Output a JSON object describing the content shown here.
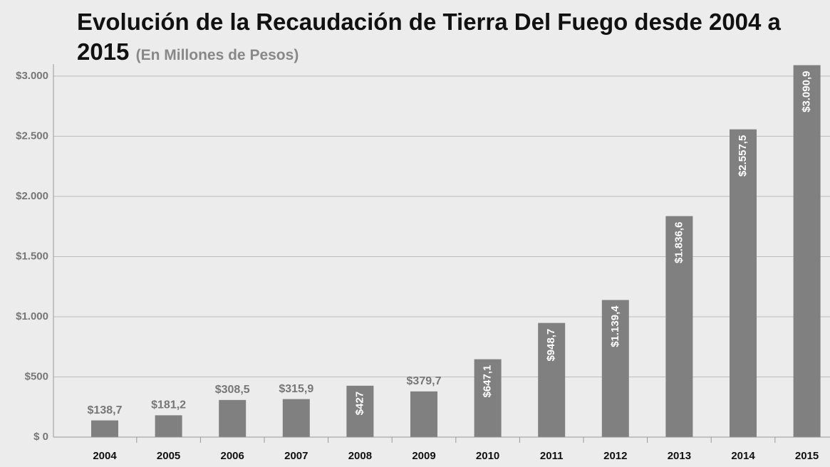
{
  "chart_data": {
    "type": "bar",
    "title": "Evolución de la Recaudación de Tierra Del Fuego desde 2004 a 2015",
    "subtitle": "(En Millones de Pesos)",
    "categories": [
      "2004",
      "2005",
      "2006",
      "2007",
      "2008",
      "2009",
      "2010",
      "2011",
      "2012",
      "2013",
      "2014",
      "2015"
    ],
    "values": [
      138.7,
      181.2,
      308.5,
      315.9,
      427,
      379.7,
      647.1,
      948.7,
      1139.4,
      1836.6,
      2557.5,
      3090.9
    ],
    "value_labels": [
      "$138,7",
      "$181,2",
      "$308,5",
      "$315,9",
      "$427",
      "$379,7",
      "$647,1",
      "$948,7",
      "$1.139,4",
      "$1.836,6",
      "$2.557,5",
      "$3.090,9"
    ],
    "color": "#808080",
    "ylim": [
      0,
      3100
    ],
    "yticks": [
      {
        "value": 0,
        "label": "$ 0"
      },
      {
        "value": 500,
        "label": "$500"
      },
      {
        "value": 1000,
        "label": "$1.000"
      },
      {
        "value": 1500,
        "label": "$1.500"
      },
      {
        "value": 2000,
        "label": "$2.000"
      },
      {
        "value": 2500,
        "label": "$2.500"
      },
      {
        "value": 3000,
        "label": "$3.000"
      }
    ],
    "grid": true
  }
}
